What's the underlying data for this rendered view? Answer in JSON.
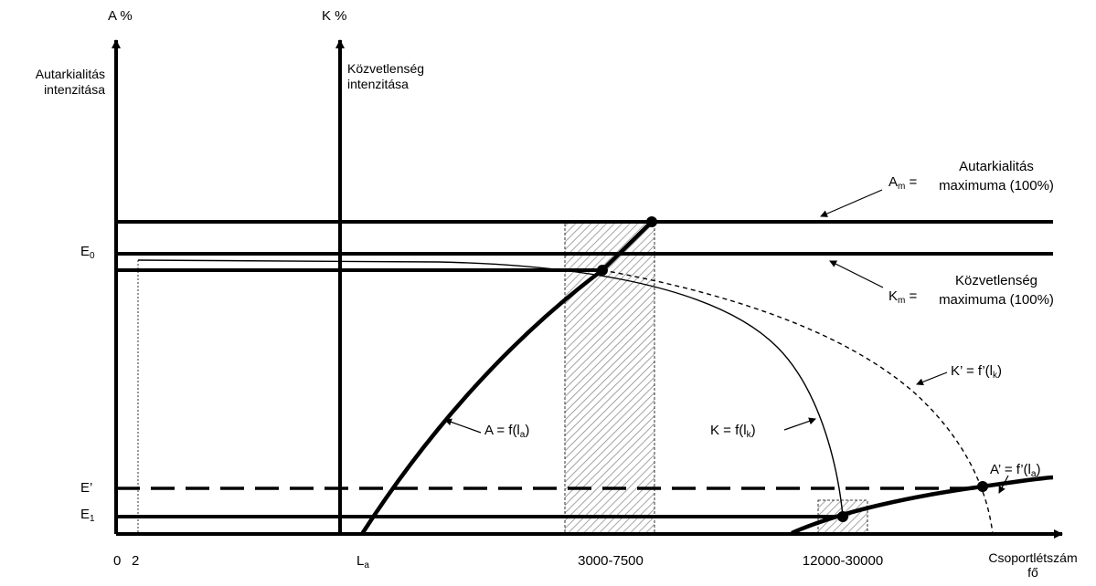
{
  "axes": {
    "a_axis_unit": "A %",
    "k_axis_unit": "K %",
    "a_axis_title_line1": "Autarkialitás",
    "a_axis_title_line2": "intenzitása",
    "k_axis_title_line1": "Közvetlenség",
    "k_axis_title_line2": "intenzitása",
    "x_axis_title_line1": "Csoportlétszám",
    "x_axis_title_line2": "fő"
  },
  "y_labels": {
    "e0_main": "E",
    "e0_sub": "0",
    "e_prime": "E’",
    "e1_main": "E",
    "e1_sub": "1"
  },
  "x_labels": {
    "zero": "0",
    "two": "2",
    "la_main": "L",
    "la_sub": "a",
    "range1": "3000-7500",
    "range2": "12000-30000"
  },
  "annotations": {
    "am_symbol": "A",
    "am_sub": "m",
    "am_eq": " =",
    "am_text_line1": "Autarkialitás",
    "am_text_line2": "maximuma (100%)",
    "km_symbol": "K",
    "km_sub": "m",
    "km_eq": " =",
    "km_text_line1": "Közvetlenség",
    "km_text_line2": "maximuma (100%)",
    "a_func_pre": "A = f(l",
    "a_func_sub": "a",
    "a_func_post": ")",
    "k_func_pre": "K = f(l",
    "k_func_sub": "k",
    "k_func_post": ")",
    "kp_func_pre": "K’ = f’(l",
    "kp_func_sub": "k",
    "kp_func_post": ")",
    "ap_func_pre": "A’ = f’(l",
    "ap_func_sub": "a",
    "ap_func_post": ")"
  },
  "colors": {
    "ink": "#000000",
    "hatch": "#8c8c8c",
    "background": "#ffffff"
  }
}
